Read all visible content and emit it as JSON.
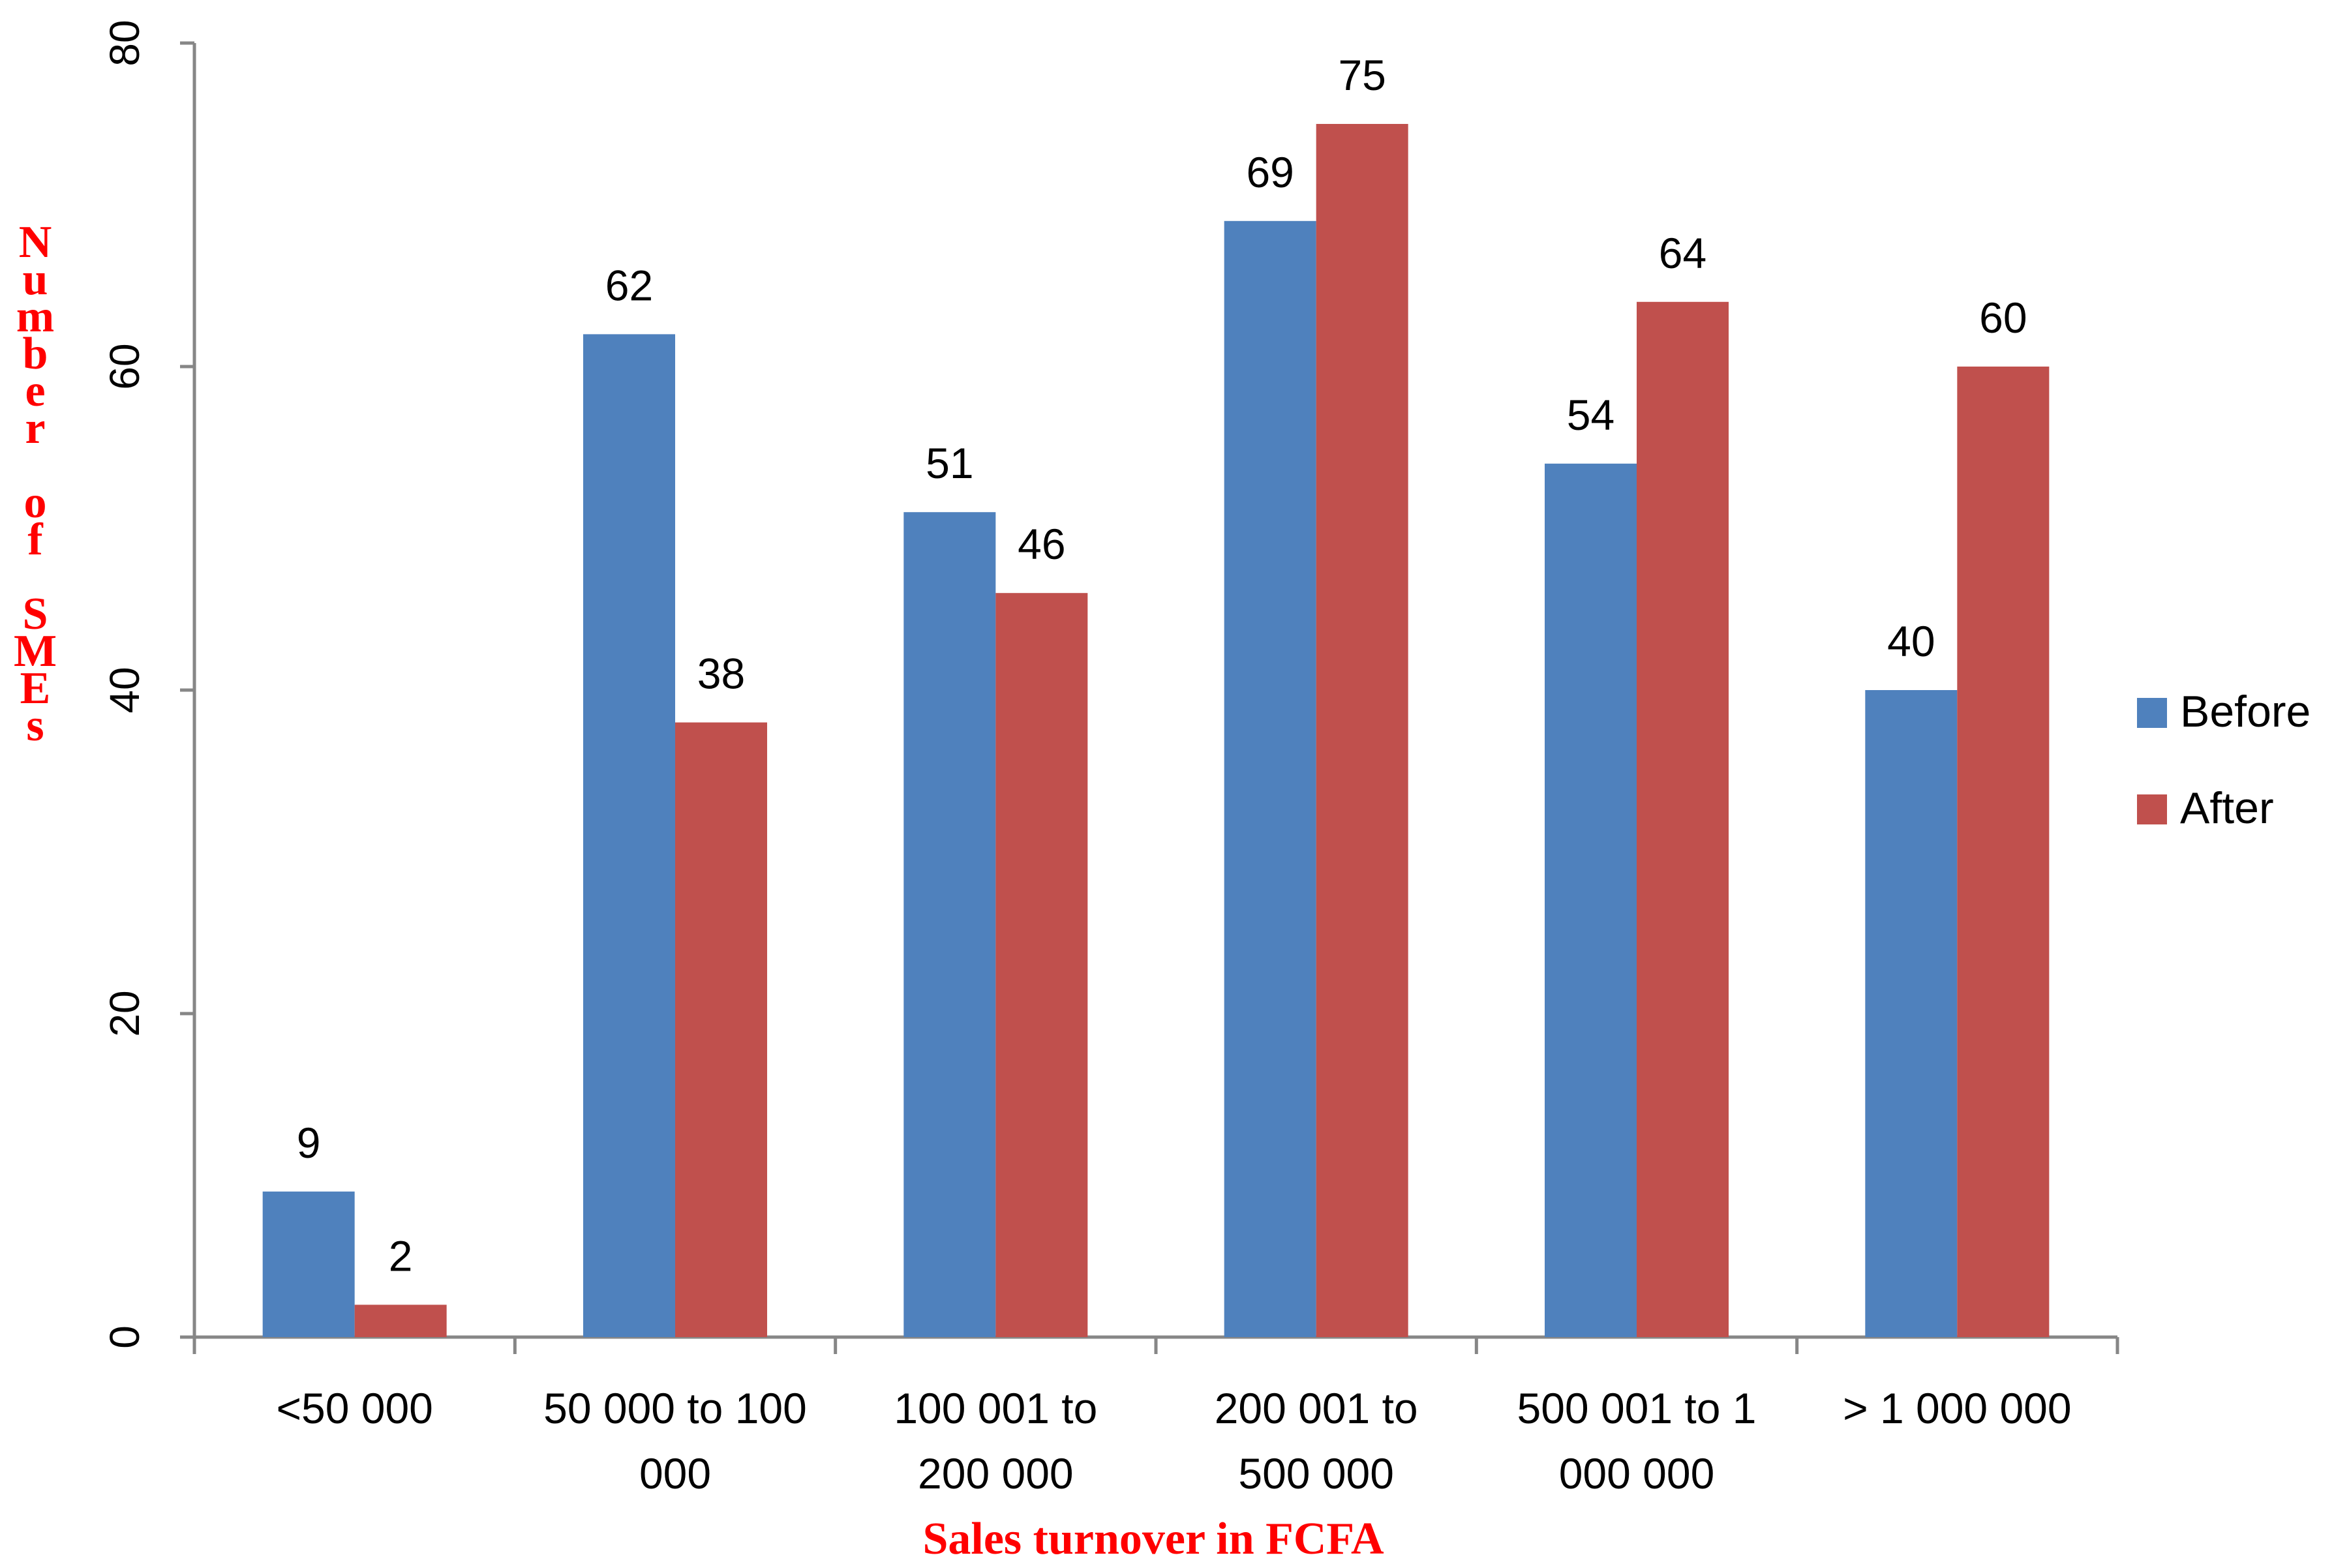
{
  "chart_data": {
    "type": "bar",
    "title": "",
    "xlabel": "Sales turnover in  FCFA",
    "ylabel": "Number of SMEs",
    "ylim": [
      0,
      80
    ],
    "yticks": [
      0,
      20,
      40,
      60,
      80
    ],
    "categories": [
      [
        "<50 000"
      ],
      [
        "50 000 to 100",
        "000"
      ],
      [
        "100 001 to",
        "200 000"
      ],
      [
        "200 001 to",
        "500 000"
      ],
      [
        "500 001 to 1",
        "000 000"
      ],
      [
        "> 1 000 000"
      ]
    ],
    "series": [
      {
        "name": "Before",
        "color": "#4F81BD",
        "values": [
          9,
          62,
          51,
          69,
          54,
          40
        ]
      },
      {
        "name": "After",
        "color": "#C0504D",
        "values": [
          2,
          38,
          46,
          75,
          64,
          60
        ]
      }
    ],
    "grid": false,
    "legend_position": "right",
    "label_color": "#FF0000"
  }
}
